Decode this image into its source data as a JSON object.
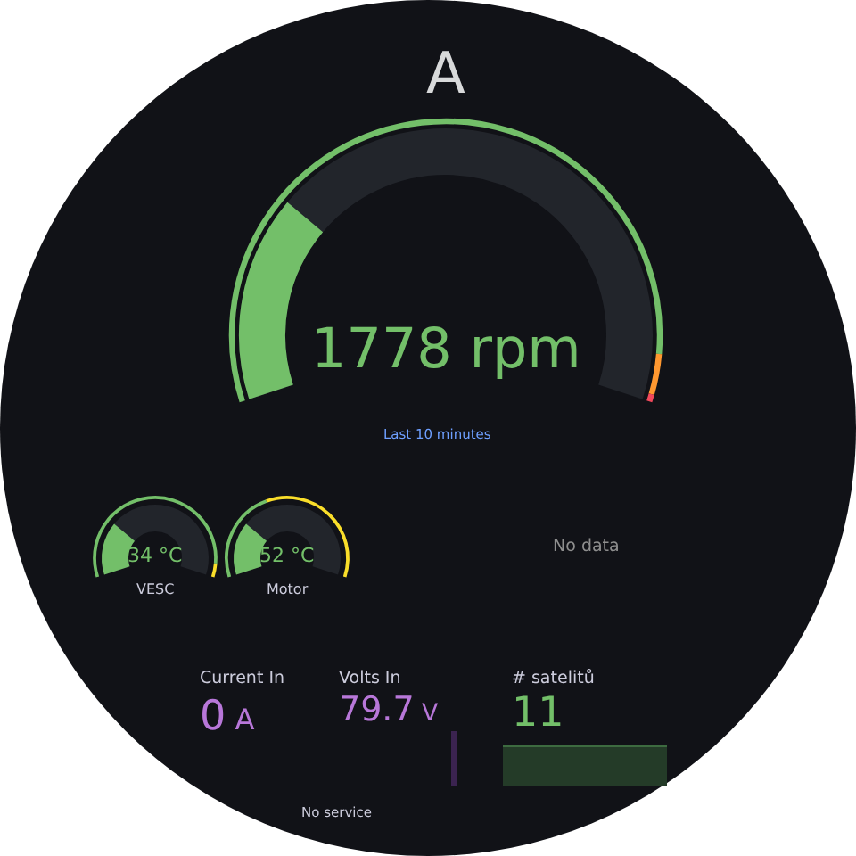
{
  "chart_data": [
    {
      "type": "other",
      "title": "A",
      "values": [
        1778
      ],
      "data_labels": true,
      "color": "#73bf69",
      "annotations": [
        "rpm",
        "Last 10 minutes"
      ]
    },
    {
      "type": "other",
      "title": "VESC",
      "values": [
        34
      ],
      "data_labels": true,
      "color": "#73bf69",
      "annotations": [
        "°C"
      ]
    },
    {
      "type": "other",
      "title": "Motor",
      "values": [
        52
      ],
      "data_labels": true,
      "color": "#73bf69",
      "annotations": [
        "°C"
      ]
    },
    {
      "type": "other",
      "annotations": [
        "No data"
      ]
    },
    {
      "type": "other",
      "title": "Current In",
      "values": [
        0
      ],
      "data_labels": true,
      "color": "#b877d9",
      "annotations": [
        "A"
      ]
    },
    {
      "type": "other",
      "title": "Volts In",
      "values": [
        79.7
      ],
      "data_labels": true,
      "color": "#b877d9",
      "annotations": [
        "V",
        "No service"
      ]
    },
    {
      "type": "other",
      "title": "# satelitů",
      "values": [
        11
      ],
      "data_labels": true,
      "color": "#73bf69"
    }
  ]
}
